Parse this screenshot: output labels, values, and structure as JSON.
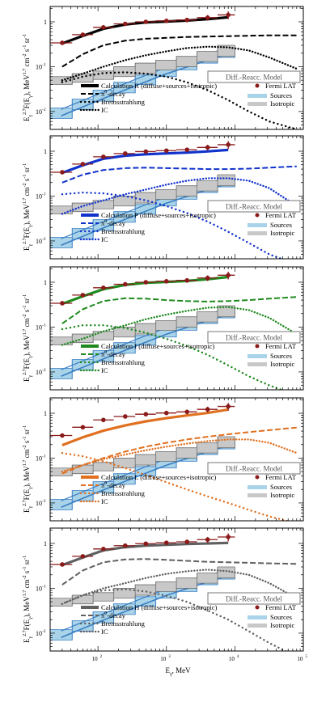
{
  "figure": {
    "x_axis_label": "E",
    "x_axis_label_sub": "γ",
    "x_axis_label_unit": ", MeV",
    "x_tick_labels": [
      "10",
      "10",
      "10",
      "10"
    ],
    "x_tick_exponents": [
      "2",
      "3",
      "4",
      "5"
    ],
    "y_tick_labels": [
      "10",
      "10",
      "1"
    ],
    "y_tick_exponents": [
      "-2",
      "-1",
      ""
    ],
    "y_label_main": "E",
    "y_label_sub": "γ",
    "y_label_sup": "2.7",
    "y_label_rest": "F(E",
    "y_label_rest2": "), MeV",
    "y_label_unit_sup": "1.7",
    "y_label_unit_rest": " cm",
    "y_label_unit_sup2": "-2",
    "y_label_unit_rest2": " s",
    "y_label_unit_sup3": "-1",
    "y_label_unit_rest3": " sr",
    "y_label_unit_sup4": "-1",
    "model_box": "Diff.-Reacc. Model",
    "legend_fermi": "Fermi LAT",
    "legend_sources": "Sources",
    "legend_isotropic": "Isotropic",
    "legend_pi0_a": "π",
    "legend_pi0_sup": "0",
    "legend_pi0_b": "-decay",
    "legend_brems": "Bremsstrahlung",
    "legend_ic": "IC",
    "colors": {
      "fermi": "#8b1a1a",
      "sources_fill": "#a9d3e8",
      "sources_line": "#3a7fc4",
      "isotropic_fill": "#c8c8c8",
      "isotropic_line": "#707070"
    }
  },
  "chart_data": [
    {
      "type": "line",
      "panel": "R",
      "legend_calc": "Calculation R (diffuse+sources+isotropic)",
      "color": "#000000",
      "xscale": "log",
      "yscale": "log",
      "xlim": [
        200,
        1000000
      ],
      "ylim": [
        0.004,
        2.2
      ],
      "x": [
        300,
        600,
        1200,
        2500,
        5000,
        10000,
        20000,
        40000,
        80000,
        160000,
        320000,
        800000
      ],
      "total": [
        0.34,
        0.5,
        0.72,
        0.9,
        1.0,
        1.05,
        1.1,
        1.18,
        1.3
      ],
      "pi0": [
        0.1,
        0.19,
        0.3,
        0.38,
        0.42,
        0.44,
        0.46,
        0.47,
        0.48,
        0.49,
        0.5,
        0.5
      ],
      "brems": [
        0.045,
        0.06,
        0.072,
        0.075,
        0.07,
        0.06,
        0.045,
        0.03,
        0.018,
        0.01,
        0.006,
        0.004
      ],
      "ic": [
        0.05,
        0.07,
        0.1,
        0.14,
        0.18,
        0.22,
        0.26,
        0.28,
        0.27,
        0.23,
        0.16,
        0.09
      ],
      "legend_position": "bottom"
    },
    {
      "type": "line",
      "panel": "P",
      "legend_calc": "Calculation P (diffuse+sources+isotropic)",
      "color": "#1133cc",
      "xscale": "log",
      "yscale": "log",
      "xlim": [
        200,
        1000000
      ],
      "ylim": [
        0.004,
        2.2
      ],
      "x": [
        300,
        600,
        1200,
        2500,
        5000,
        10000,
        20000,
        40000,
        80000,
        160000,
        320000,
        800000
      ],
      "total": [
        0.34,
        0.5,
        0.7,
        0.82,
        0.88,
        0.92,
        0.96,
        1.02,
        1.1
      ],
      "pi0": [
        0.2,
        0.3,
        0.38,
        0.42,
        0.43,
        0.42,
        0.41,
        0.4,
        0.4,
        0.41,
        0.43,
        0.46
      ],
      "brems": [
        0.11,
        0.12,
        0.115,
        0.1,
        0.08,
        0.06,
        0.042,
        0.027,
        0.016,
        0.009,
        0.005,
        0.003
      ],
      "ic": [
        0.04,
        0.06,
        0.08,
        0.11,
        0.14,
        0.18,
        0.22,
        0.25,
        0.25,
        0.22,
        0.15,
        0.06
      ],
      "legend_position": "bottom"
    },
    {
      "type": "line",
      "panel": "I",
      "legend_calc": "Calculation I (diffuse+sources+isotropic)",
      "color": "#1e8a1e",
      "xscale": "log",
      "yscale": "log",
      "xlim": [
        200,
        1000000
      ],
      "ylim": [
        0.004,
        2.2
      ],
      "x": [
        300,
        600,
        1200,
        2500,
        5000,
        10000,
        20000,
        40000,
        80000,
        160000,
        320000,
        800000
      ],
      "total": [
        0.34,
        0.5,
        0.72,
        0.9,
        1.0,
        1.05,
        1.1,
        1.2,
        1.35
      ],
      "pi0": [
        0.12,
        0.25,
        0.38,
        0.44,
        0.43,
        0.4,
        0.38,
        0.37,
        0.38,
        0.4,
        0.43,
        0.47
      ],
      "brems": [
        0.09,
        0.11,
        0.11,
        0.095,
        0.075,
        0.055,
        0.038,
        0.024,
        0.014,
        0.008,
        0.005,
        0.003
      ],
      "ic": [
        0.04,
        0.055,
        0.08,
        0.11,
        0.15,
        0.19,
        0.23,
        0.27,
        0.28,
        0.24,
        0.16,
        0.07
      ],
      "legend_position": "bottom"
    },
    {
      "type": "line",
      "panel": "L",
      "legend_calc": "Calculation L (diffuse+sources+isotropic)",
      "color": "#e07020",
      "xscale": "log",
      "yscale": "log",
      "xlim": [
        200,
        1000000
      ],
      "ylim": [
        0.004,
        2.2
      ],
      "x": [
        300,
        600,
        1200,
        2500,
        5000,
        10000,
        20000,
        40000,
        80000,
        160000,
        320000,
        800000
      ],
      "total": [
        0.2,
        0.3,
        0.42,
        0.55,
        0.68,
        0.8,
        0.92,
        1.05,
        1.25
      ],
      "pi0": [
        0.045,
        0.07,
        0.1,
        0.14,
        0.18,
        0.22,
        0.26,
        0.3,
        0.34,
        0.38,
        0.42,
        0.48
      ],
      "brems": [
        0.13,
        0.11,
        0.085,
        0.06,
        0.042,
        0.029,
        0.02,
        0.014,
        0.01,
        0.007,
        0.005,
        0.0035
      ],
      "ic": [
        0.05,
        0.07,
        0.095,
        0.12,
        0.15,
        0.18,
        0.21,
        0.24,
        0.26,
        0.26,
        0.22,
        0.13
      ],
      "legend_position": "bottom"
    },
    {
      "type": "line",
      "panel": "H",
      "legend_calc": "Calculation H (diffuse+sources+isotropic)",
      "color": "#606060",
      "xscale": "log",
      "yscale": "log",
      "xlim": [
        200,
        1000000
      ],
      "ylim": [
        0.004,
        2.2
      ],
      "x": [
        300,
        600,
        1200,
        2500,
        5000,
        10000,
        20000,
        40000,
        80000,
        160000,
        320000,
        800000
      ],
      "total": [
        0.34,
        0.5,
        0.72,
        0.85,
        0.92,
        0.96,
        1.0,
        1.03,
        1.06
      ],
      "pi0": [
        0.12,
        0.25,
        0.38,
        0.44,
        0.45,
        0.43,
        0.41,
        0.39,
        0.38,
        0.37,
        0.36,
        0.35
      ],
      "brems": [
        0.045,
        0.07,
        0.09,
        0.095,
        0.085,
        0.068,
        0.05,
        0.032,
        0.02,
        0.011,
        0.006,
        0.003
      ],
      "ic": [
        0.045,
        0.07,
        0.1,
        0.13,
        0.17,
        0.21,
        0.24,
        0.26,
        0.24,
        0.2,
        0.13,
        0.06
      ],
      "legend_position": "bottom"
    }
  ],
  "shared_series": {
    "fermi": {
      "x": [
        300,
        600,
        1200,
        2500,
        5000,
        10000,
        20000,
        40000,
        80000
      ],
      "x_lo": [
        200,
        420,
        850,
        1700,
        3500,
        7000,
        14000,
        28000,
        56000
      ],
      "x_hi": [
        420,
        850,
        1700,
        3500,
        7000,
        14000,
        28000,
        56000,
        100000
      ],
      "y": [
        0.34,
        0.52,
        0.76,
        0.9,
        1.0,
        1.05,
        1.1,
        1.25,
        1.45
      ],
      "y_err": [
        0.03,
        0.04,
        0.05,
        0.07,
        0.08,
        0.1,
        0.13,
        0.18,
        0.28
      ]
    },
    "bins": [
      200,
      420,
      850,
      1700,
      3500,
      7000,
      14000,
      28000,
      56000,
      100000
    ],
    "isotropic_lo": [
      0.04,
      0.045,
      0.052,
      0.06,
      0.07,
      0.085,
      0.1,
      0.13,
      0.17
    ],
    "isotropic_hi": [
      0.06,
      0.07,
      0.08,
      0.1,
      0.12,
      0.14,
      0.17,
      0.22,
      0.3
    ],
    "sources_lo": [
      0.007,
      0.011,
      0.017,
      0.026,
      0.04,
      0.06,
      0.085,
      0.12,
      0.16
    ],
    "sources_hi": [
      0.012,
      0.019,
      0.03,
      0.045,
      0.065,
      0.095,
      0.13,
      0.18,
      0.24
    ]
  }
}
